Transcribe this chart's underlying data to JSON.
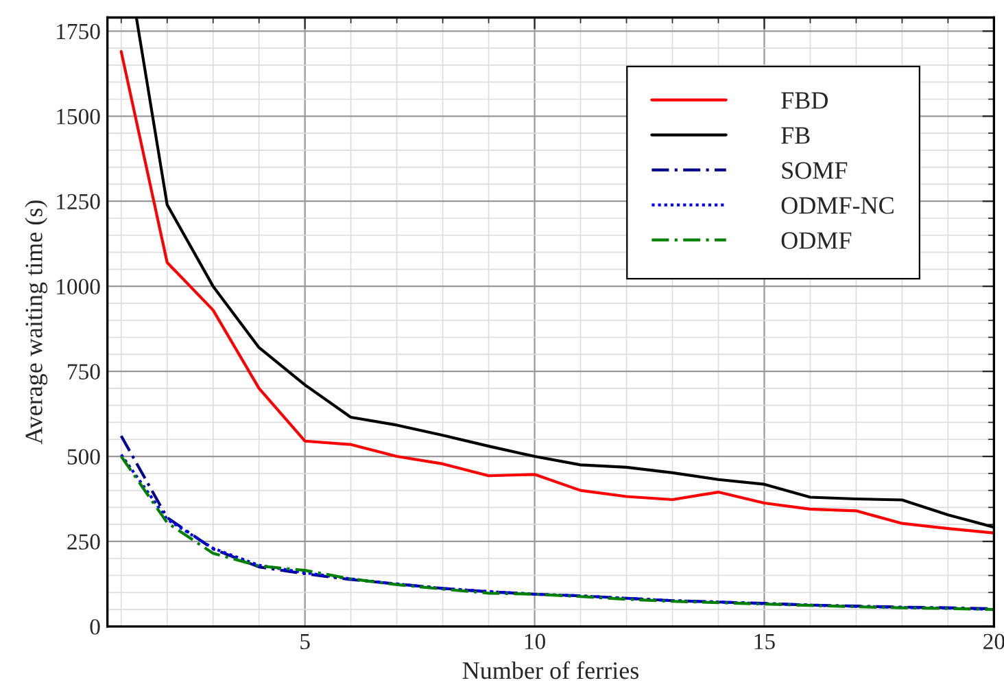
{
  "chart_data": {
    "type": "line",
    "xlabel": "Number of ferries",
    "ylabel": "Average waiting time (s)",
    "x": [
      1,
      2,
      3,
      4,
      5,
      6,
      7,
      8,
      9,
      10,
      11,
      12,
      13,
      14,
      15,
      16,
      17,
      18,
      19,
      20
    ],
    "series": [
      {
        "name": "FBD",
        "color": "#ff0000",
        "line_style": "solid",
        "values": [
          1690,
          1070,
          930,
          700,
          545,
          535,
          500,
          478,
          443,
          447,
          400,
          382,
          373,
          395,
          363,
          345,
          340,
          303,
          288,
          275
        ]
      },
      {
        "name": "FB",
        "color": "#000000",
        "line_style": "solid",
        "x": [
          1.33,
          2,
          3,
          4,
          5,
          6,
          7,
          8,
          9,
          10,
          11,
          12,
          13,
          14,
          15,
          16,
          17,
          18,
          19,
          20
        ],
        "values": [
          1790,
          1240,
          1000,
          820,
          710,
          615,
          592,
          562,
          530,
          500,
          475,
          468,
          452,
          432,
          418,
          380,
          375,
          372,
          328,
          292
        ]
      },
      {
        "name": "SOMF",
        "color": "#00008b",
        "line_style": "dashed",
        "values": [
          560,
          320,
          228,
          175,
          155,
          138,
          125,
          112,
          102,
          95,
          90,
          83,
          76,
          72,
          68,
          63,
          60,
          57,
          55,
          52
        ]
      },
      {
        "name": "ODMF-NC",
        "color": "#0000ff",
        "line_style": "dotted",
        "values": [
          505,
          315,
          230,
          180,
          158,
          140,
          125,
          112,
          103,
          95,
          90,
          83,
          76,
          72,
          67,
          63,
          59,
          56,
          54,
          50
        ]
      },
      {
        "name": "ODMF",
        "color": "#008000",
        "line_style": "dashed",
        "values": [
          500,
          305,
          215,
          178,
          165,
          140,
          123,
          110,
          98,
          95,
          88,
          80,
          74,
          70,
          66,
          62,
          58,
          55,
          53,
          50
        ]
      }
    ],
    "xlim": [
      0.7,
      20
    ],
    "xticks": [
      5,
      10,
      15,
      20
    ],
    "ylim": [
      0,
      1790
    ],
    "yticks": [
      0,
      250,
      500,
      750,
      1000,
      1250,
      1500,
      1750
    ],
    "grid": true,
    "legend": "top right",
    "marker": "none"
  }
}
